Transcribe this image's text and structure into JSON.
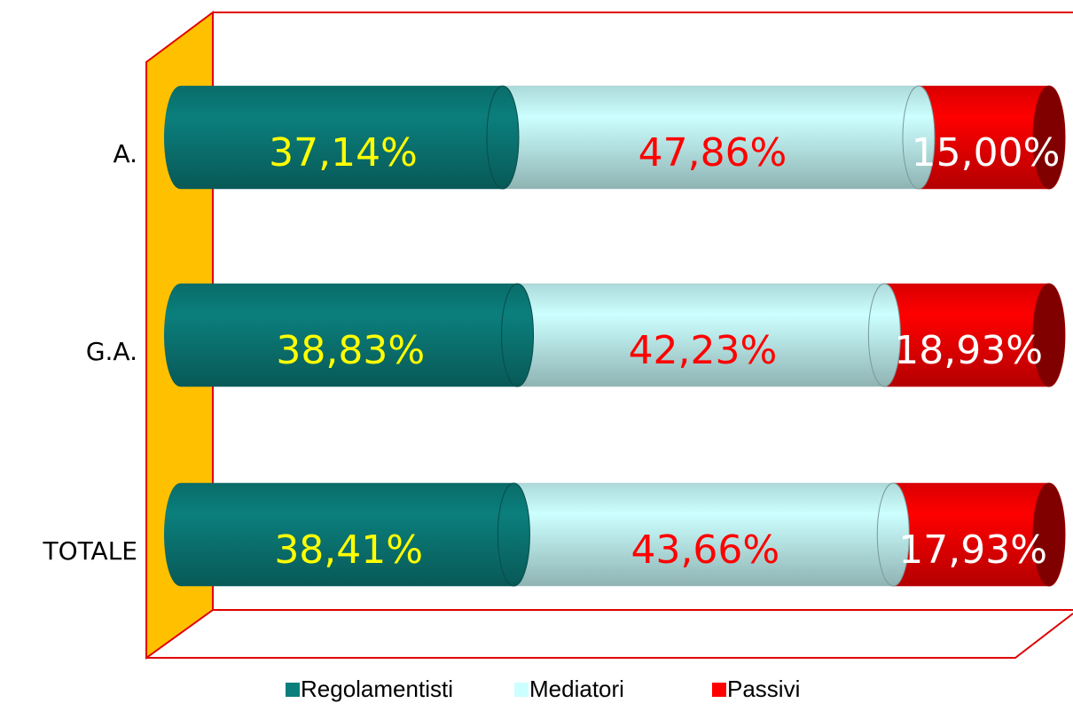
{
  "chart_data": {
    "type": "stacked-bar-3d",
    "categories": [
      "A.",
      "G.A.",
      "TOTALE"
    ],
    "xlim": [
      0,
      100
    ],
    "series": [
      {
        "name": "Regolamentisti",
        "color": "#0b7f7c",
        "label_color": "#ffff00",
        "values": [
          37.14,
          38.83,
          38.41
        ],
        "value_labels": [
          "37,14%",
          "38,83%",
          "38,41%"
        ]
      },
      {
        "name": "Mediatori",
        "color": "#ccffff",
        "label_color": "#ff0000",
        "values": [
          47.86,
          42.23,
          43.66
        ],
        "value_labels": [
          "47,86%",
          "42,23%",
          "43,66%"
        ]
      },
      {
        "name": "Passivi",
        "color": "#ff0000",
        "label_color": "#ffffff",
        "values": [
          15.0,
          18.93,
          17.93
        ],
        "value_labels": [
          "15,00%",
          "18,93%",
          "17,93%"
        ]
      }
    ],
    "legend": "bottom"
  }
}
